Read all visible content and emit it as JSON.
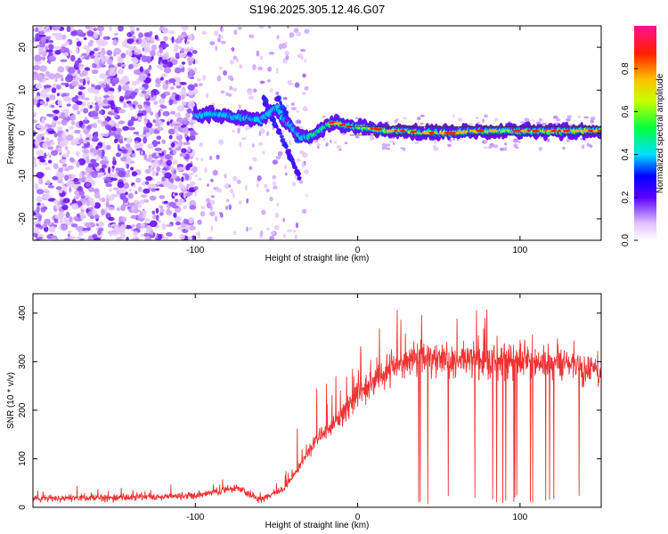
{
  "title": "S196.2025.305.12.46.G07",
  "chart_data": [
    {
      "type": "heatmap",
      "name": "spectrogram",
      "xlabel": "Height of straight line (km)",
      "ylabel": "Frequency (Hz)",
      "xlim": [
        -200,
        150
      ],
      "ylim": [
        -25,
        25
      ],
      "xticks": [
        -100,
        0,
        100
      ],
      "yticks": [
        -20,
        -10,
        0,
        10,
        20
      ],
      "colorbar": {
        "label": "Normalized spectral amplitude",
        "range": [
          0,
          1
        ],
        "ticks": [
          0.0,
          0.2,
          0.4,
          0.6,
          0.8
        ]
      },
      "ridge": {
        "x": [
          -100,
          -90,
          -80,
          -70,
          -60,
          -50,
          -45,
          -40,
          -35,
          -30,
          -25,
          -20,
          -15,
          -10,
          -5,
          0,
          10,
          20,
          30,
          40,
          50,
          60,
          70,
          80,
          90,
          100,
          110,
          120,
          130,
          140,
          150
        ],
        "freq": [
          4,
          4.5,
          4,
          3.5,
          3,
          6,
          3,
          1,
          -1,
          -1,
          0,
          1.5,
          2.5,
          2,
          1.5,
          1.5,
          1,
          0.5,
          0.5,
          0,
          0,
          0,
          0.5,
          0.5,
          0.5,
          0.5,
          0.5,
          0.5,
          0.5,
          0.5,
          0.5
        ]
      },
      "reference_lines_hz": [
        1.5,
        -0.5
      ]
    },
    {
      "type": "line",
      "name": "snr",
      "xlabel": "Height of straight line (km)",
      "ylabel": "SNR (10 * v/v)",
      "xlim": [
        -200,
        150
      ],
      "ylim": [
        0,
        440
      ],
      "xticks": [
        -100,
        0,
        100
      ],
      "yticks": [
        0,
        100,
        200,
        300,
        400
      ],
      "color": "#ee3333",
      "trend": {
        "x": [
          -200,
          -150,
          -100,
          -75,
          -60,
          -45,
          -35,
          -25,
          -10,
          0,
          10,
          20,
          30,
          40,
          60,
          80,
          100,
          120,
          140,
          150
        ],
        "y": [
          18,
          20,
          24,
          40,
          15,
          40,
          90,
          140,
          190,
          230,
          260,
          285,
          300,
          305,
          305,
          300,
          300,
          295,
          285,
          275
        ]
      },
      "dropouts_range_km": [
        35,
        140
      ]
    }
  ]
}
